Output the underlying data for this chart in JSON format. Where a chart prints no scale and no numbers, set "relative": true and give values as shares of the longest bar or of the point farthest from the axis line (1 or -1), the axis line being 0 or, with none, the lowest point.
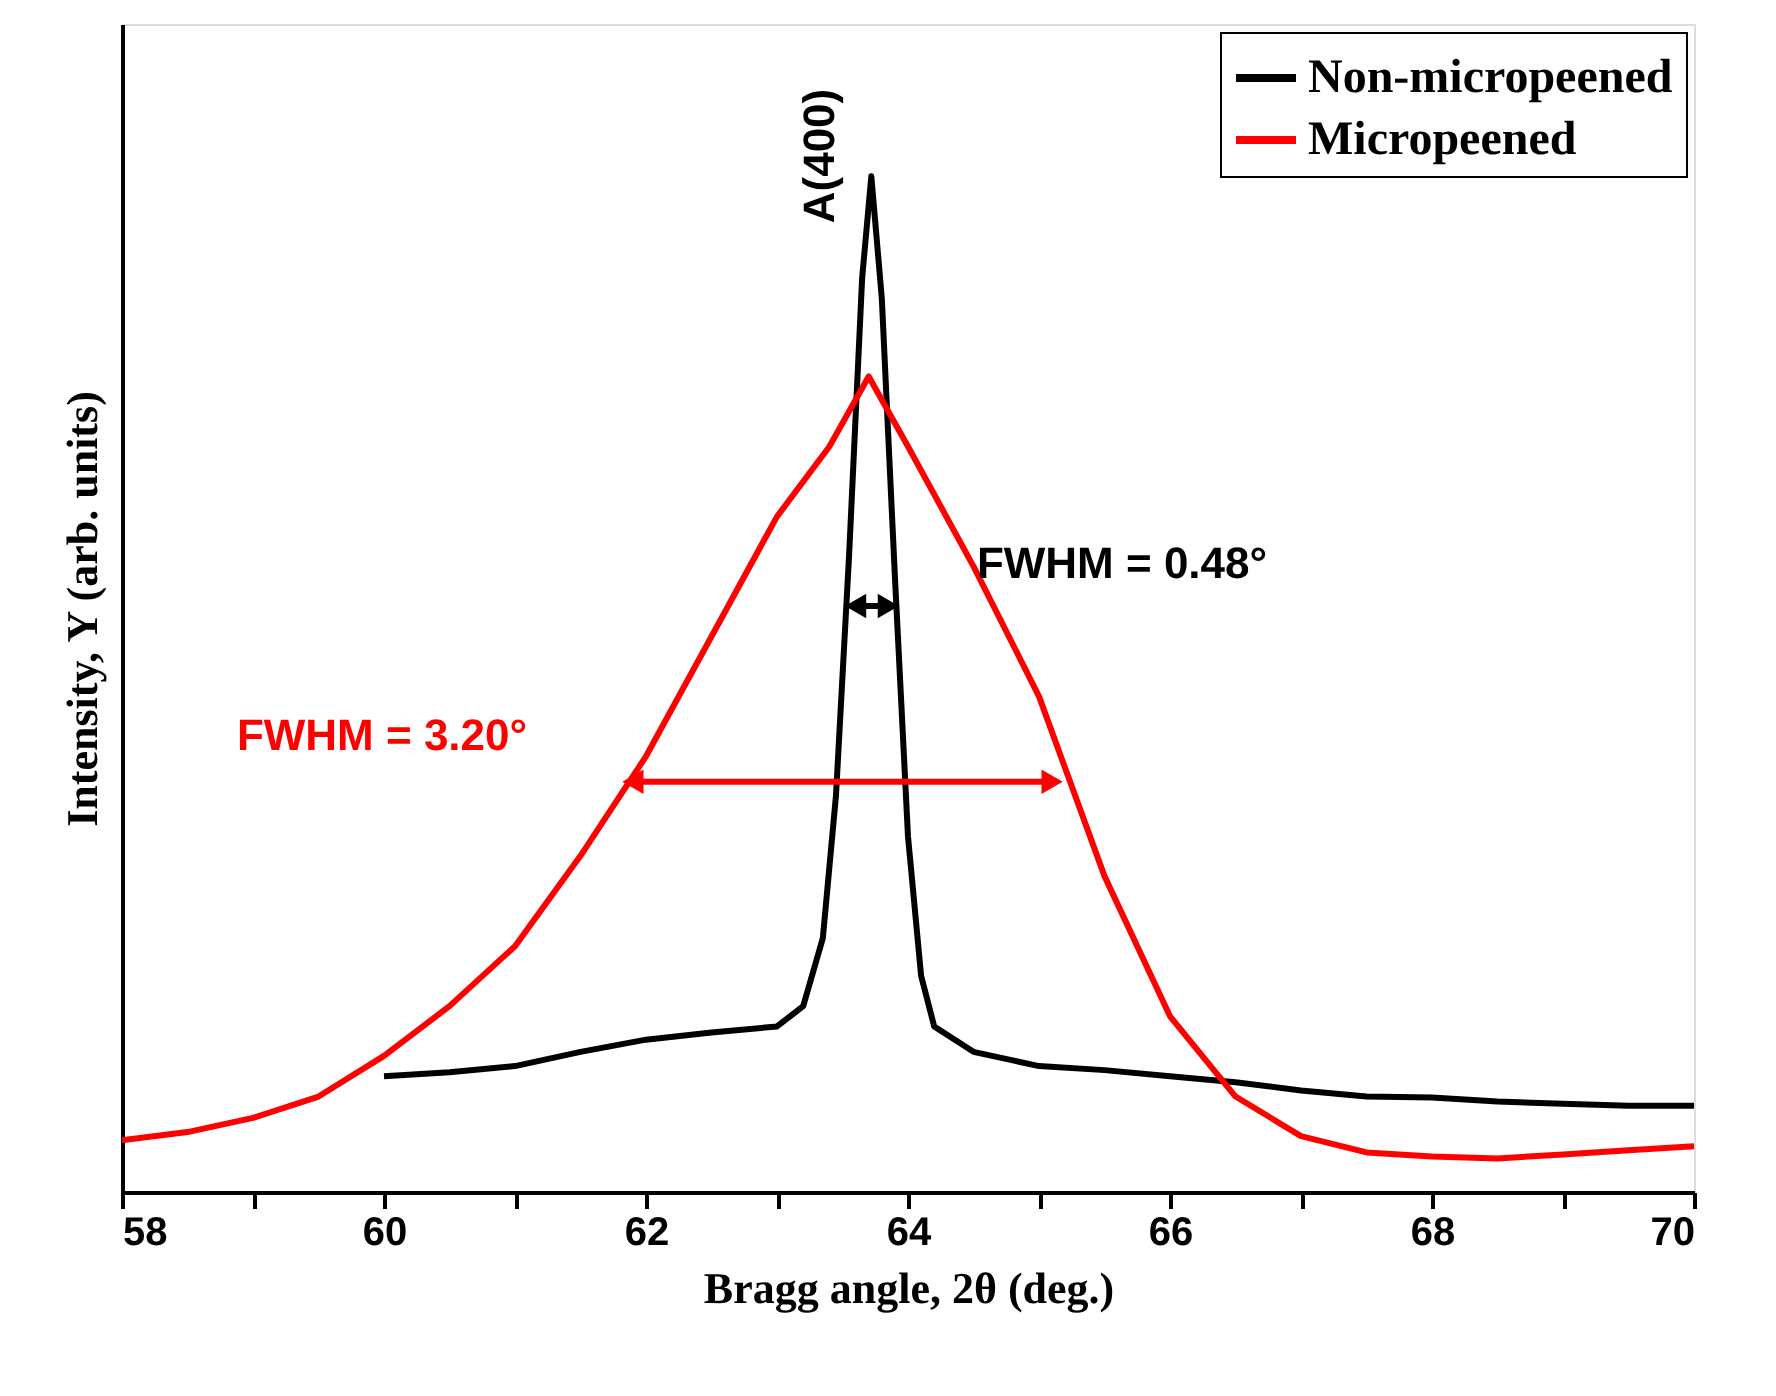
{
  "chart_data": {
    "type": "line",
    "relative": true,
    "xlabel": "Bragg angle, 2θ (deg.)",
    "ylabel": "Intensity, Y (arb. units)",
    "xlim": [
      58,
      70
    ],
    "xticks": [
      58,
      {
        "value": 59,
        "label": null
      },
      60,
      {
        "value": 61,
        "label": null
      },
      62,
      {
        "value": 63,
        "label": null
      },
      64,
      {
        "value": 65,
        "label": null
      },
      66,
      {
        "value": 67,
        "label": null
      },
      68,
      {
        "value": 69,
        "label": null
      },
      70
    ],
    "legend": "top right",
    "grid": false,
    "tick_labels": "x",
    "series": [
      {
        "name": "Non-micropeened",
        "color": "#000000",
        "x": [
          60,
          60.5,
          61,
          61.5,
          62,
          62.5,
          63,
          63.2,
          63.35,
          63.45,
          63.55,
          63.65,
          63.72,
          63.8,
          63.9,
          64.0,
          64.1,
          64.2,
          64.5,
          65,
          65.5,
          66,
          66.5,
          67,
          67.5,
          68,
          68.5,
          69,
          69.5,
          70
        ],
        "values": [
          0.114,
          0.118,
          0.124,
          0.138,
          0.15,
          0.157,
          0.163,
          0.183,
          0.25,
          0.39,
          0.626,
          0.9,
          1.0,
          0.88,
          0.606,
          0.35,
          0.213,
          0.163,
          0.138,
          0.124,
          0.12,
          0.114,
          0.108,
          0.1,
          0.094,
          0.093,
          0.089,
          0.087,
          0.085,
          0.085
        ]
      },
      {
        "name": "Micropeened",
        "color": "#ff0000",
        "x": [
          58,
          58.5,
          59,
          59.5,
          60,
          60.5,
          61,
          61.5,
          62,
          62.5,
          63,
          63.4,
          63.7,
          64,
          64.5,
          65,
          65.5,
          66,
          66.5,
          67,
          67.5,
          68,
          68.5,
          69,
          69.5,
          70
        ],
        "values": [
          0.051,
          0.059,
          0.073,
          0.094,
          0.134,
          0.183,
          0.242,
          0.331,
          0.429,
          0.547,
          0.665,
          0.734,
          0.803,
          0.734,
          0.616,
          0.488,
          0.311,
          0.173,
          0.094,
          0.055,
          0.039,
          0.035,
          0.033,
          0.037,
          0.041,
          0.045
        ]
      },
      {
        "type": "line",
        "color": "#000000",
        "marker": "triangle",
        "x": [
          63.6,
          63.85
        ],
        "values": [
          0.577,
          0.577
        ]
      },
      {
        "type": "line",
        "color": "#ff0000",
        "marker": "triangle",
        "x": [
          61.9,
          65.1
        ],
        "values": [
          0.404,
          0.404
        ]
      }
    ],
    "annotations": [
      "A(400)",
      "FWHM = 0.48°",
      "FWHM = 3.20°"
    ]
  }
}
